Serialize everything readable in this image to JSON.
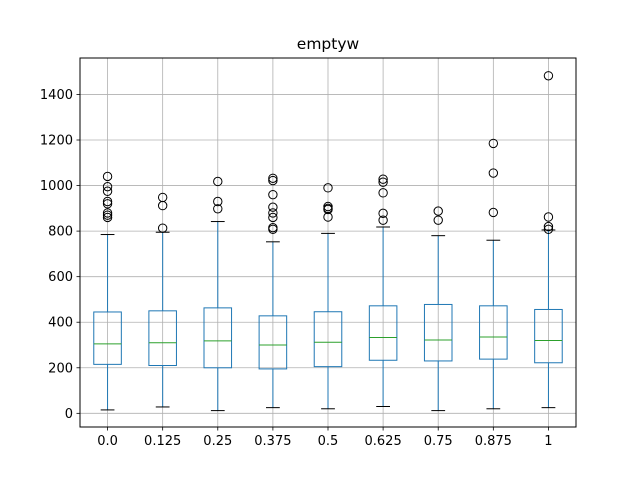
{
  "chart_data": {
    "type": "box",
    "title": "emptyw",
    "xlabel": "",
    "ylabel": "",
    "categories": [
      "0.0",
      "0.125",
      "0.25",
      "0.375",
      "0.5",
      "0.625",
      "0.75",
      "0.875",
      "1"
    ],
    "ylim": [
      -60,
      1560
    ],
    "yticks": [
      0,
      200,
      400,
      600,
      800,
      1000,
      1200,
      1400
    ],
    "grid": true,
    "colors": {
      "box": "#1f77b4",
      "median": "#2ca02c",
      "whisker_cap": "#000000",
      "flier": "#000000",
      "grid": "#b0b0b0",
      "axes": "#000000"
    },
    "boxes": [
      {
        "category": "0.0",
        "whislo": 15,
        "q1": 215,
        "med": 305,
        "q3": 445,
        "whishi": 785,
        "fliers": [
          1040,
          995,
          975,
          930,
          920,
          880,
          870,
          860
        ]
      },
      {
        "category": "0.125",
        "whislo": 28,
        "q1": 210,
        "med": 310,
        "q3": 450,
        "whishi": 795,
        "fliers": [
          948,
          912,
          813
        ]
      },
      {
        "category": "0.25",
        "whislo": 12,
        "q1": 200,
        "med": 318,
        "q3": 463,
        "whishi": 842,
        "fliers": [
          1018,
          930,
          898
        ]
      },
      {
        "category": "0.375",
        "whislo": 25,
        "q1": 195,
        "med": 300,
        "q3": 428,
        "whishi": 753,
        "fliers": [
          1032,
          1022,
          960,
          905,
          880,
          860,
          815,
          808
        ]
      },
      {
        "category": "0.5",
        "whislo": 20,
        "q1": 205,
        "med": 312,
        "q3": 446,
        "whishi": 790,
        "fliers": [
          990,
          908,
          900,
          895,
          862
        ]
      },
      {
        "category": "0.625",
        "whislo": 30,
        "q1": 233,
        "med": 333,
        "q3": 472,
        "whishi": 818,
        "fliers": [
          1028,
          1015,
          968,
          878,
          848
        ]
      },
      {
        "category": "0.75",
        "whislo": 12,
        "q1": 230,
        "med": 322,
        "q3": 478,
        "whishi": 780,
        "fliers": [
          888,
          848
        ]
      },
      {
        "category": "0.875",
        "whislo": 20,
        "q1": 238,
        "med": 335,
        "q3": 472,
        "whishi": 760,
        "fliers": [
          1185,
          1055,
          882
        ]
      },
      {
        "category": "1",
        "whislo": 25,
        "q1": 222,
        "med": 320,
        "q3": 456,
        "whishi": 805,
        "fliers": [
          1482,
          862,
          820,
          808
        ]
      }
    ]
  }
}
